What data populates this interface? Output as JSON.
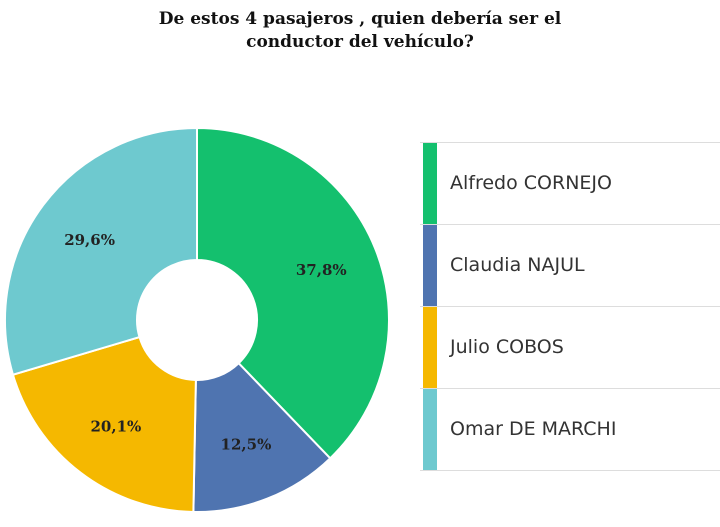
{
  "chart_data": {
    "type": "pie",
    "title_lines": [
      "De estos 4 pasajeros , quien debería ser el",
      "conductor del vehículo?"
    ],
    "donut": true,
    "categories": [
      "Alfredo CORNEJO",
      "Claudia NAJUL",
      "Julio COBOS",
      "Omar DE MARCHI"
    ],
    "values": [
      37.8,
      12.5,
      20.1,
      29.6
    ],
    "data_labels": [
      "37,8%",
      "12,5%",
      "20,1%",
      "29,6%"
    ],
    "colors": [
      "#14c06e",
      "#4f74b0",
      "#f5b800",
      "#6ec9cf"
    ],
    "legend_position": "right"
  }
}
